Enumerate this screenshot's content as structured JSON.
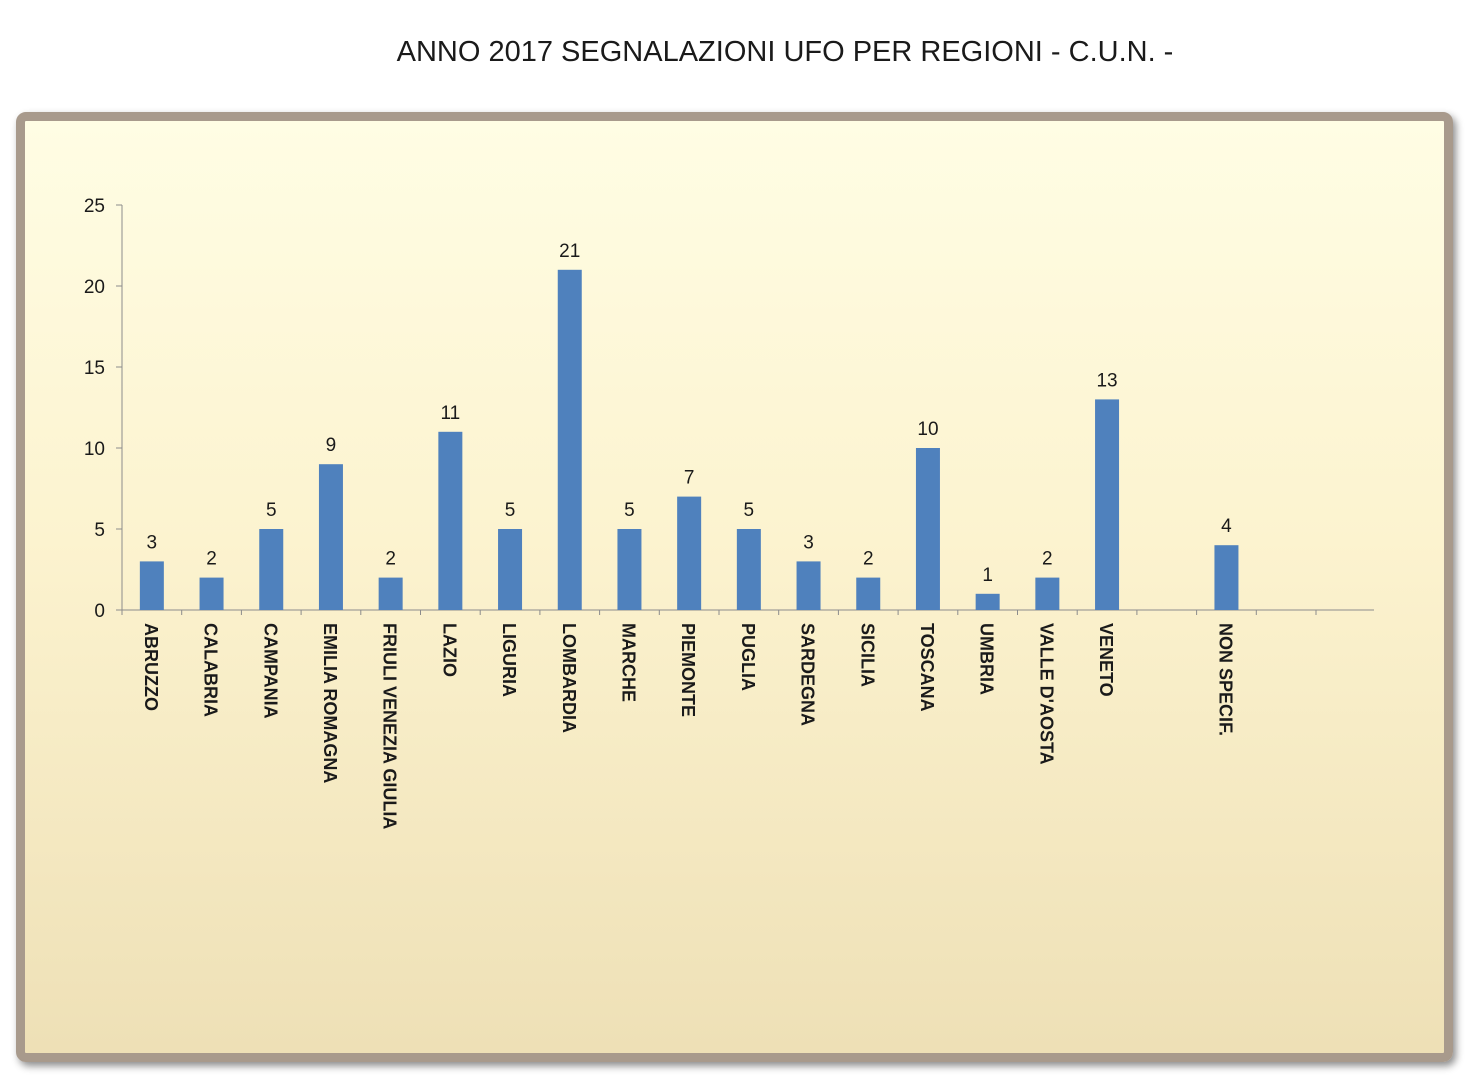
{
  "chart_data": {
    "type": "bar",
    "title": "ANNO 2017 SEGNALAZIONI UFO PER REGIONI - C.U.N. -",
    "xlabel": "",
    "ylabel": "",
    "ylim": [
      0,
      25
    ],
    "yticks": [
      0,
      5,
      10,
      15,
      20,
      25
    ],
    "categories": [
      "ABRUZZO",
      "CALABRIA",
      "CAMPANIA",
      "EMILIA ROMAGNA",
      "FRIULI VENEZIA GIULIA",
      "LAZIO",
      "LIGURIA",
      "LOMBARDIA",
      "MARCHE",
      "PIEMONTE",
      "PUGLIA",
      "SARDEGNA",
      "SICILIA",
      "TOSCANA",
      "UMBRIA",
      "VALLE D'AOSTA",
      "VENETO",
      "",
      "NON SPECIF.",
      ""
    ],
    "values": [
      3,
      2,
      5,
      9,
      2,
      11,
      5,
      21,
      5,
      7,
      5,
      3,
      2,
      10,
      1,
      2,
      13,
      null,
      4,
      null
    ],
    "grid": false,
    "legend": "none",
    "bar_color": "#4f81bd"
  }
}
